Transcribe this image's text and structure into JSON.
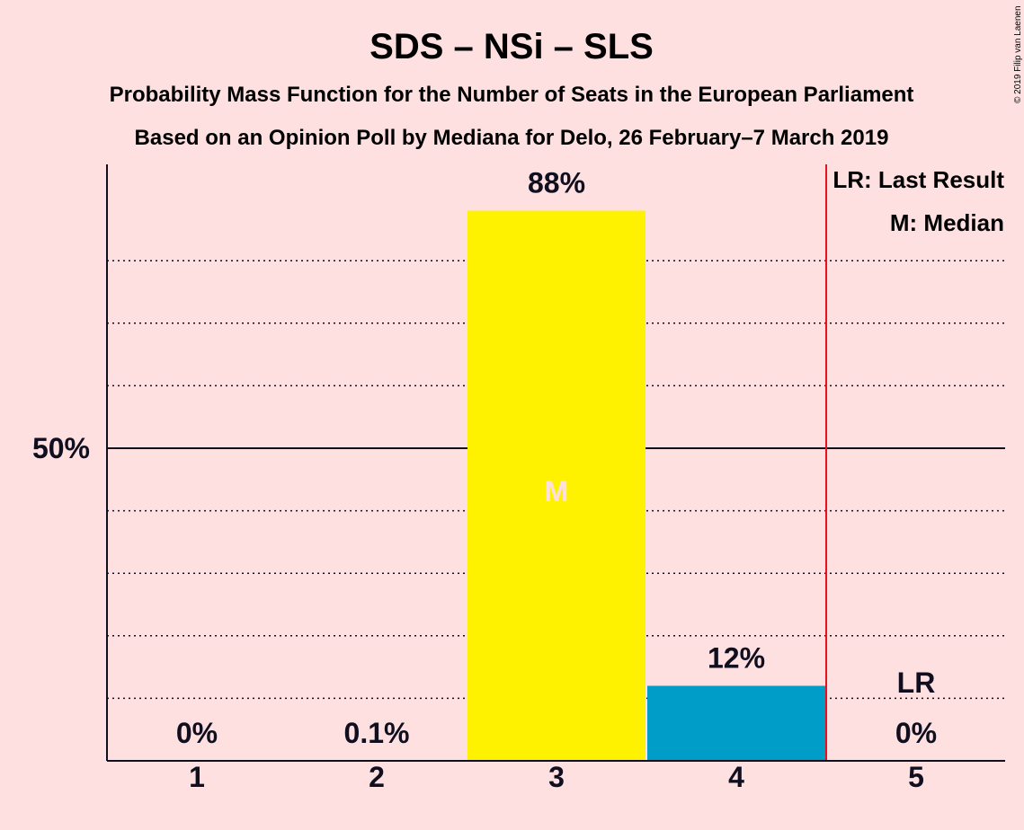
{
  "chart_data": {
    "type": "bar",
    "title": "SDS – NSi – SLS",
    "subtitle_1": "Probability Mass Function for the Number of Seats in the European Parliament",
    "subtitle_2": "Based on an Opinion Poll by Mediana for Delo, 26 February–7 March 2019",
    "copyright": "© 2019 Filip van Laenen",
    "categories": [
      "1",
      "2",
      "3",
      "4",
      "5"
    ],
    "values": [
      0,
      0.1,
      88,
      12,
      0
    ],
    "value_labels": [
      "0%",
      "0.1%",
      "88%",
      "12%",
      "0%"
    ],
    "bar_colors": [
      "#FFF200",
      "#FFF200",
      "#FFF200",
      "#009DC8",
      "#009DC8"
    ],
    "ylim": [
      0,
      100
    ],
    "y_tick_labels": [
      {
        "value": 50,
        "label": "50%"
      }
    ],
    "gridlines": [
      10,
      20,
      30,
      40,
      60,
      70,
      80
    ],
    "median_category": "3",
    "median_mark": "M",
    "last_result_category": "5",
    "last_result_mark": "LR",
    "last_result_line_color": "#E8121E",
    "legend": [
      "LR: Last Result",
      "M: Median"
    ],
    "legend_position": "top-right",
    "colors": {
      "background": "#FFE0E0",
      "text": "#0F0F1F",
      "median_text": "#FFE0E0"
    }
  }
}
